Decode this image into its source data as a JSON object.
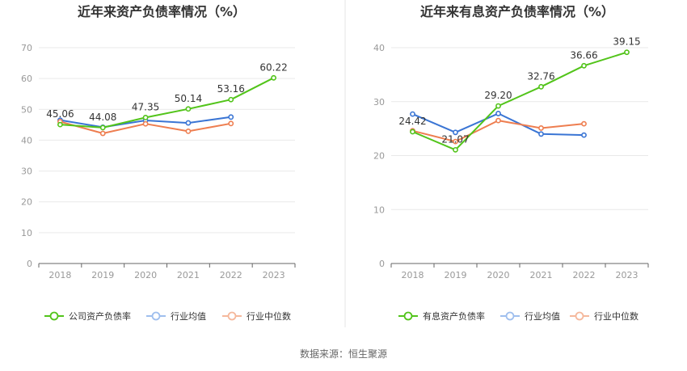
{
  "source_label": "数据来源：恒生聚源",
  "chart_data": [
    {
      "type": "line",
      "title": "近年来资产负债率情况（%）",
      "categories": [
        "2018",
        "2019",
        "2020",
        "2021",
        "2022",
        "2023"
      ],
      "ylim": [
        0,
        70
      ],
      "yticks": [
        0,
        10,
        20,
        30,
        40,
        50,
        60,
        70
      ],
      "grid": true,
      "legend_position": "bottom",
      "series": [
        {
          "name": "公司资产负债率",
          "color": "#52c41a",
          "values": [
            45.06,
            44.08,
            47.35,
            50.14,
            53.16,
            60.22
          ],
          "labels": [
            "45.06",
            "44.08",
            "47.35",
            "50.14",
            "53.16",
            "60.22"
          ]
        },
        {
          "name": "行业均值",
          "color": "#3a75d4",
          "values": [
            46.5,
            44.2,
            46.4,
            45.6,
            47.5,
            null
          ]
        },
        {
          "name": "行业中位数",
          "color": "#ee7e50",
          "values": [
            46.0,
            42.2,
            45.3,
            42.9,
            45.4,
            null
          ]
        }
      ]
    },
    {
      "type": "line",
      "title": "近年来有息资产负债率情况（%）",
      "categories": [
        "2018",
        "2019",
        "2020",
        "2021",
        "2022",
        "2023"
      ],
      "ylim": [
        0,
        40
      ],
      "yticks": [
        0,
        10,
        20,
        30,
        40
      ],
      "grid": true,
      "legend_position": "bottom",
      "series": [
        {
          "name": "有息资产负债率",
          "color": "#52c41a",
          "values": [
            24.42,
            21.07,
            29.2,
            32.76,
            36.66,
            39.15
          ],
          "labels": [
            "24.42",
            "21.07",
            "29.20",
            "32.76",
            "36.66",
            "39.15"
          ]
        },
        {
          "name": "行业均值",
          "color": "#3a75d4",
          "values": [
            27.7,
            24.3,
            27.8,
            24.0,
            23.8,
            null
          ]
        },
        {
          "name": "行业中位数",
          "color": "#ee7e50",
          "values": [
            24.6,
            22.6,
            26.5,
            25.1,
            25.9,
            null
          ]
        }
      ]
    }
  ]
}
